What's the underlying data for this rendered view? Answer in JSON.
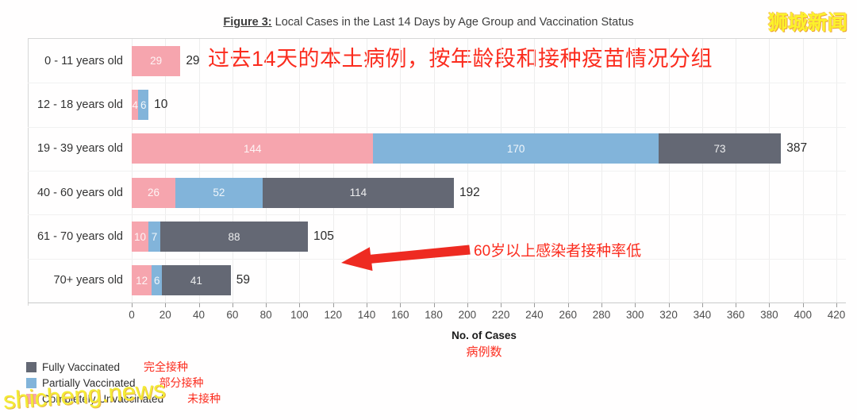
{
  "title": {
    "prefix": "Figure 3:",
    "rest": " Local Cases in the Last 14 Days by Age Group and Vaccination Status"
  },
  "annotations": {
    "heading_cn": "过去14天的本土病例，按年龄段和接种疫苗情况分组",
    "arrow_note_cn": "60岁以上感染者接种率低",
    "watermark_top_right": "狮城新闻",
    "watermark_bottom_left": "shicheng.news"
  },
  "chart_data": {
    "type": "bar",
    "orientation": "horizontal",
    "stacked": true,
    "title": "Figure 3: Local Cases in the Last 14 Days by Age Group and Vaccination Status",
    "categories": [
      "0 - 11 years old",
      "12 - 18 years old",
      "19 - 39 years old",
      "40 - 60 years old",
      "61 - 70 years old",
      "70+ years old"
    ],
    "series": [
      {
        "name": "Completely Unvaccinated",
        "name_cn": "未接种",
        "color": "#f6a5ae",
        "values": [
          29,
          4,
          144,
          26,
          10,
          12
        ]
      },
      {
        "name": "Partially Vaccinated",
        "name_cn": "部分接种",
        "color": "#82b4da",
        "values": [
          0,
          6,
          170,
          52,
          7,
          6
        ]
      },
      {
        "name": "Fully Vaccinated",
        "name_cn": "完全接种",
        "color": "#646874",
        "values": [
          0,
          0,
          73,
          114,
          88,
          41
        ]
      }
    ],
    "totals": [
      29,
      10,
      387,
      192,
      105,
      59
    ],
    "xlabel": "No. of Cases",
    "xlabel_cn": "病例数",
    "xlim": [
      0,
      420
    ],
    "xticks": [
      0,
      20,
      40,
      60,
      80,
      100,
      120,
      140,
      160,
      180,
      200,
      220,
      240,
      260,
      280,
      300,
      320,
      340,
      360,
      380,
      400,
      420
    ],
    "grid": true,
    "legend_position": "bottom-left"
  },
  "legend": {
    "items": [
      {
        "label": "Fully Vaccinated",
        "label_cn": "完全接种",
        "color": "#646874"
      },
      {
        "label": "Partially Vaccinated",
        "label_cn": "部分接种",
        "color": "#82b4da"
      },
      {
        "label": "Completely Unvaccinated",
        "label_cn": "未接种",
        "color": "#f6a5ae"
      }
    ]
  },
  "colors": {
    "annotation_red": "#fb2c1e",
    "watermark_yellow": "#f3ec35",
    "bar_pink": "#f6a5ae",
    "bar_blue": "#82b4da",
    "bar_grey": "#646874"
  }
}
